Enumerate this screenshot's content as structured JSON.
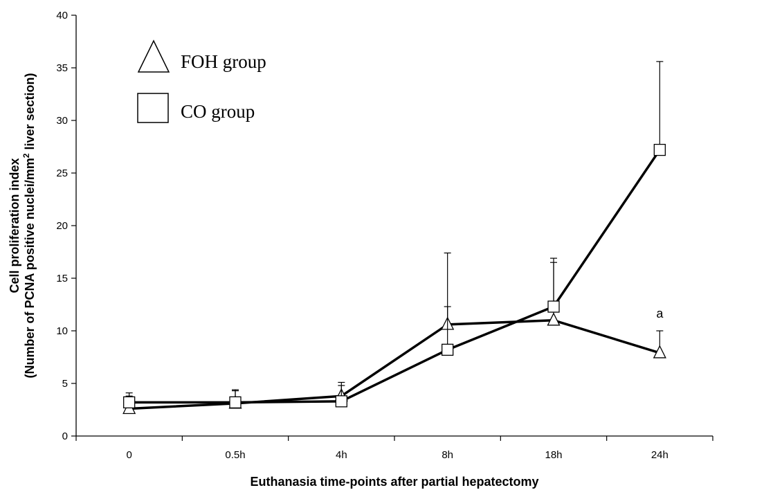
{
  "chart_data": {
    "type": "line",
    "categories": [
      "0",
      "0.5h",
      "4h",
      "8h",
      "18h",
      "24h"
    ],
    "xlabel": "Euthanasia time-points after partial hepatectomy",
    "ylabel_line1": "Cell proliferation index",
    "ylabel_line2_pre": "(Number of PCNA positive nuclei/mm",
    "ylabel_line2_sup": "2",
    "ylabel_line2_post": " liver section)",
    "ylim": [
      0,
      40
    ],
    "yticks": [
      0,
      5,
      10,
      15,
      20,
      25,
      30,
      35,
      40
    ],
    "series": [
      {
        "name": "FOH group",
        "marker": "triangle",
        "values": [
          2.6,
          3.1,
          3.8,
          10.6,
          11.0,
          7.9
        ],
        "error_upper": [
          3.8,
          4.3,
          5.1,
          12.3,
          16.5,
          10.0
        ]
      },
      {
        "name": "CO group",
        "marker": "square",
        "values": [
          3.2,
          3.2,
          3.3,
          8.2,
          12.3,
          27.2
        ],
        "error_upper": [
          4.1,
          4.4,
          4.8,
          17.4,
          16.9,
          35.6
        ]
      }
    ],
    "annotations": [
      {
        "text": "a",
        "category": "24h",
        "y": 11.2
      }
    ],
    "legend_position": "top-left",
    "grid": false
  }
}
